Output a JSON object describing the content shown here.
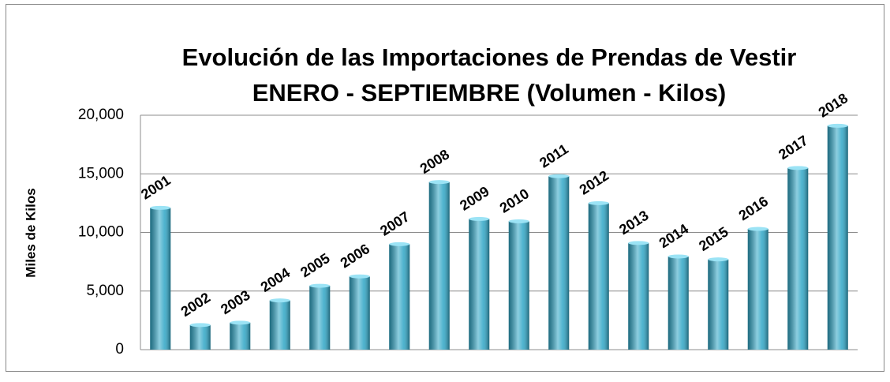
{
  "chart_data": {
    "type": "bar",
    "title": "Evolución de las Importaciones de Prendas de Vestir",
    "subtitle": "ENERO - SEPTIEMBRE  (Volumen - Kilos)",
    "y_label": "Miles de Kilos",
    "categories": [
      "2001",
      "2002",
      "2003",
      "2004",
      "2005",
      "2006",
      "2007",
      "2008",
      "2009",
      "2010",
      "2011",
      "2012",
      "2013",
      "2014",
      "2015",
      "2016",
      "2017",
      "2018"
    ],
    "values": [
      12100,
      2100,
      2300,
      4200,
      5450,
      6250,
      9000,
      14300,
      11150,
      10950,
      14800,
      12500,
      9100,
      7950,
      7700,
      10300,
      15500,
      19100
    ],
    "color": "#2fa6c6",
    "ylim": [
      0,
      20000
    ],
    "yticks": [
      0,
      {
        "value": 5000,
        "label": "5,000"
      },
      {
        "value": 10000,
        "label": "10,000"
      },
      {
        "value": 15000,
        "label": "15,000"
      },
      {
        "value": 20000,
        "label": "20,000"
      }
    ],
    "grid": true
  }
}
